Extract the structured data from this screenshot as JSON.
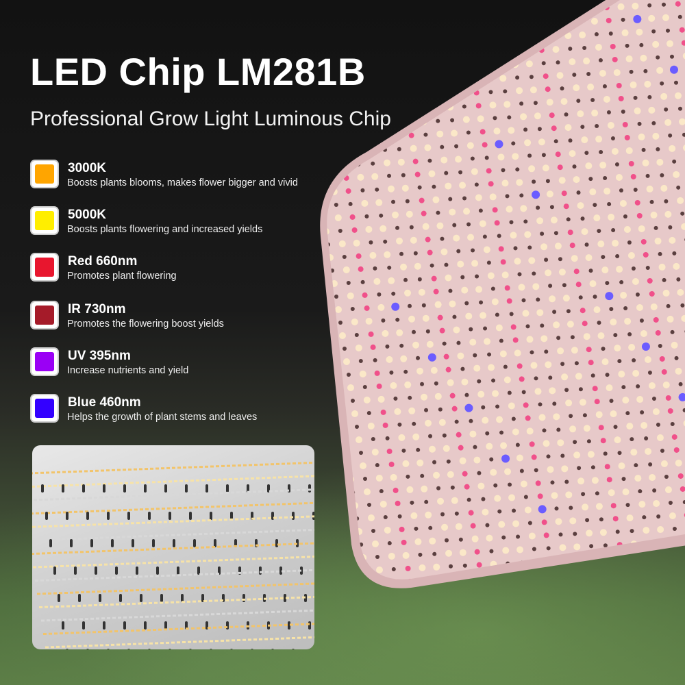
{
  "header": {
    "title": "LED Chip LM281B",
    "subtitle": "Professional Grow Light Luminous Chip"
  },
  "features": [
    {
      "title": "3000K",
      "description": "Boosts plants blooms, makes flower bigger and vivid",
      "color": "#FFA500"
    },
    {
      "title": "5000K",
      "description": "Boosts plants flowering and increased yields",
      "color": "#FFEE00"
    },
    {
      "title": "Red 660nm",
      "description": "Promotes plant flowering",
      "color": "#E8162E"
    },
    {
      "title": "IR 730nm",
      "description": "Promotes the flowering boost yields",
      "color": "#A51B29"
    },
    {
      "title": "UV 395nm",
      "description": "Increase nutrients and yield",
      "color": "#9A00F5"
    },
    {
      "title": "Blue 460nm",
      "description": "Helps the growth of plant stems and leaves",
      "color": "#3300FF"
    }
  ],
  "colors": {
    "panel": "#e7c9c9",
    "led_warm": "#fbe8c8",
    "led_red": "#f0508a",
    "led_blue": "#6b5cff",
    "board": "#dcdcdc"
  }
}
